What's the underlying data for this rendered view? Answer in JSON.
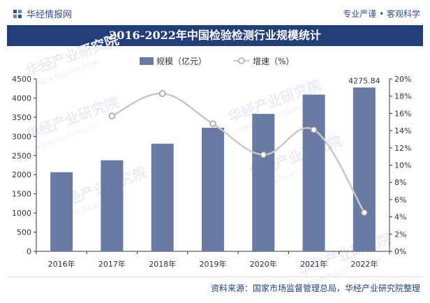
{
  "header": {
    "brand": "华经情报网",
    "slogan": "专业严谨 • 客观科学"
  },
  "footer": {
    "source": "资料来源：国家市场监督管理总局，华经产业研究院整理"
  },
  "watermark": {
    "text": "华经产业研究院",
    "url": "www.huaon.com"
  },
  "colors": {
    "bar": "#6a7ba3",
    "line": "#c8c8c8",
    "title_bg": "#233f78",
    "brand": "#2f4f8f"
  },
  "chart_data": {
    "type": "bar",
    "title": "2016-2022年中国检验检测行业规模统计",
    "categories": [
      "2016年",
      "2017年",
      "2018年",
      "2019年",
      "2020年",
      "2021年",
      "2022年"
    ],
    "series": [
      {
        "name": "规模（亿元）",
        "type": "bar",
        "axis": "left",
        "values": [
          2065,
          2377,
          2810,
          3225,
          3586,
          4090,
          4275.84
        ]
      },
      {
        "name": "增速（%）",
        "type": "line",
        "axis": "right",
        "values": [
          null,
          15.7,
          18.3,
          14.8,
          11.2,
          14.1,
          4.5
        ]
      }
    ],
    "data_labels": [
      {
        "category": "2022年",
        "series": "规模（亿元）",
        "text": "4275.84"
      }
    ],
    "y_left": {
      "min": 0,
      "max": 4500,
      "ticks": [
        0,
        500,
        1000,
        1500,
        2000,
        2500,
        3000,
        3500,
        4000,
        4500
      ]
    },
    "y_right": {
      "min": 0,
      "max": 20,
      "ticks": [
        "0%",
        "2%",
        "4%",
        "6%",
        "8%",
        "10%",
        "12%",
        "14%",
        "16%",
        "18%",
        "20%"
      ]
    },
    "legend_position": "top-center",
    "grid": false
  }
}
